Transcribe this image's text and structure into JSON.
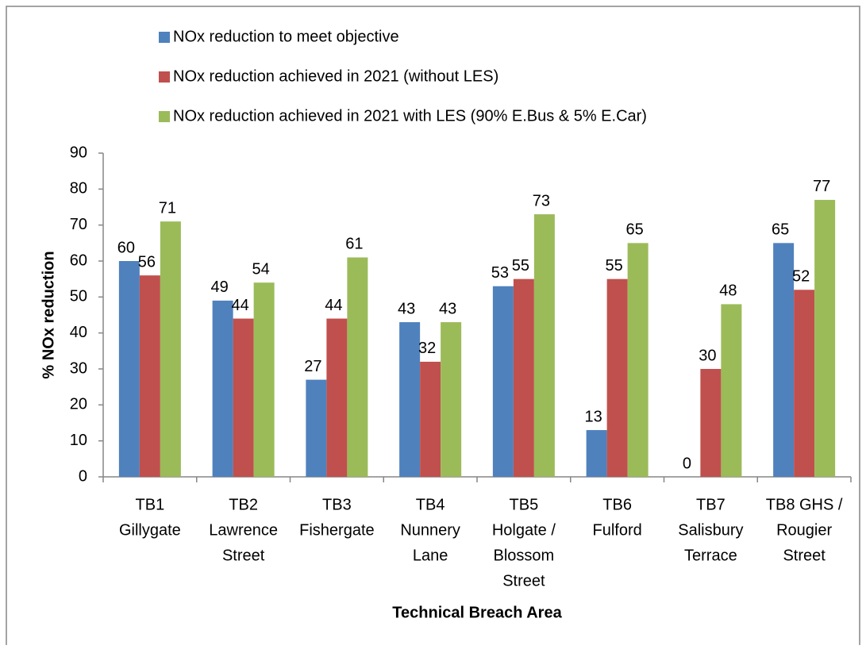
{
  "chart_data": {
    "type": "bar",
    "y_label": "% NOx reduction",
    "x_label": "Technical Breach Area",
    "categories": [
      [
        "TB1",
        "Gillygate"
      ],
      [
        "TB2",
        "Lawrence",
        "Street"
      ],
      [
        "TB3",
        "Fishergate"
      ],
      [
        "TB4",
        "Nunnery",
        "Lane"
      ],
      [
        "TB5",
        "Holgate /",
        "Blossom",
        "Street"
      ],
      [
        "TB6",
        "Fulford"
      ],
      [
        "TB7",
        "Salisbury",
        "Terrace"
      ],
      [
        "TB8 GHS /",
        "Rougier",
        "Street"
      ]
    ],
    "series": [
      {
        "name": "NOx reduction to meet objective",
        "color": "#4f81bd",
        "values": [
          60,
          49,
          27,
          43,
          53,
          13,
          0,
          65
        ]
      },
      {
        "name": "NOx reduction achieved in 2021 (without LES)",
        "color": "#c0504d",
        "values": [
          56,
          44,
          44,
          32,
          55,
          55,
          30,
          52
        ]
      },
      {
        "name": "NOx reduction achieved in 2021 with LES (90% E.Bus & 5% E.Car)",
        "color": "#9bbb59",
        "values": [
          71,
          54,
          61,
          43,
          73,
          65,
          48,
          77
        ]
      }
    ],
    "ylim": [
      0,
      90
    ],
    "yticks": [
      0,
      10,
      20,
      30,
      40,
      50,
      60,
      70,
      80,
      90
    ],
    "grid": false,
    "legend": "top"
  }
}
